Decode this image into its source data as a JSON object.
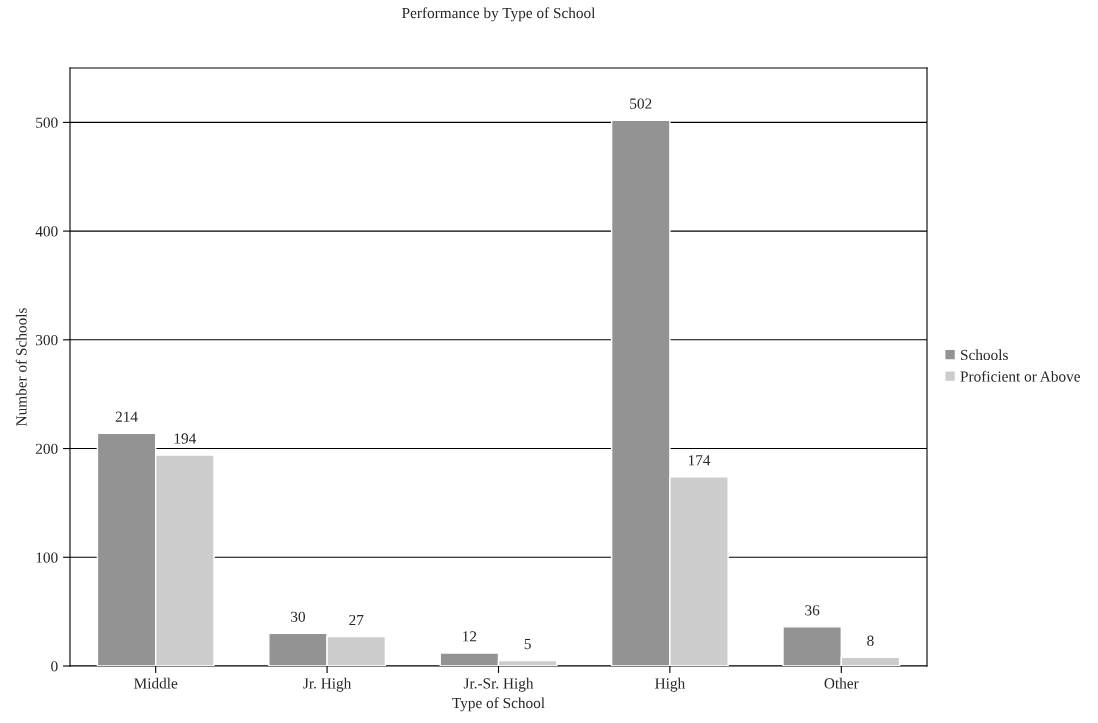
{
  "chart_data": {
    "type": "bar",
    "title": "Performance by Type of School",
    "xlabel": "Type of School",
    "ylabel": "Number of Schools",
    "categories": [
      "Middle",
      "Jr. High",
      "Jr.-Sr. High",
      "High",
      "Other"
    ],
    "series": [
      {
        "name": "Schools",
        "color": "#939393",
        "values": [
          214,
          30,
          12,
          502,
          36
        ]
      },
      {
        "name": "Proficient or Above",
        "color": "#cccccc",
        "values": [
          194,
          27,
          5,
          174,
          8
        ]
      }
    ],
    "ylim": [
      0,
      550
    ],
    "yticks": [
      0,
      100,
      200,
      300,
      400,
      500
    ],
    "grid": "y",
    "legend": "right",
    "data_labels": true
  }
}
